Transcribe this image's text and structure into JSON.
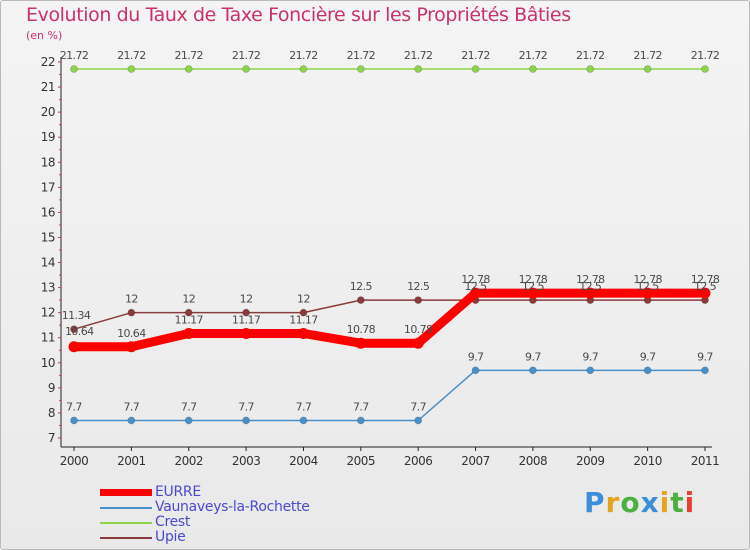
{
  "title": "Evolution du Taux de Taxe Foncière sur les Propriétés Bâties",
  "unit_label": "(en %)",
  "colors": {
    "title": "#c8326e",
    "axis": "#222222",
    "tick_marks": "#c8326e",
    "legend_text": "#4a4ad0"
  },
  "chart_data": {
    "type": "line",
    "title": "Evolution du Taux de Taxe Foncière sur les Propriétés Bâties",
    "ylabel": "(en %)",
    "xlabel": "",
    "x": [
      "2000",
      "2001",
      "2002",
      "2003",
      "2004",
      "2005",
      "2006",
      "2007",
      "2008",
      "2009",
      "2010",
      "2011"
    ],
    "ylim": [
      7,
      22
    ],
    "yticks": [
      "7",
      "8",
      "9",
      "10",
      "11",
      "12",
      "13",
      "14",
      "15",
      "16",
      "17",
      "18",
      "19",
      "20",
      "21",
      "22"
    ],
    "series": [
      {
        "name": "EURRE",
        "color": "#ff0000",
        "values": [
          10.64,
          10.64,
          11.17,
          11.17,
          11.17,
          10.78,
          10.78,
          12.78,
          12.78,
          12.78,
          12.78,
          12.78
        ],
        "labels": [
          "10.64",
          "10.64",
          "11.17",
          "11.17",
          "11.17",
          "10.78",
          "10.78",
          "12.78",
          "12.78",
          "12.78",
          "12.78",
          "12.78"
        ]
      },
      {
        "name": "Vaunaveys-la-Rochette",
        "color": "#4a90c8",
        "values": [
          7.7,
          7.7,
          7.7,
          7.7,
          7.7,
          7.7,
          7.7,
          9.7,
          9.7,
          9.7,
          9.7,
          9.7
        ],
        "labels": [
          "7.7",
          "7.7",
          "7.7",
          "7.7",
          "7.7",
          "7.7",
          "7.7",
          "9.7",
          "9.7",
          "9.7",
          "9.7",
          "9.7"
        ]
      },
      {
        "name": "Crest",
        "color": "#8ed44a",
        "values": [
          21.72,
          21.72,
          21.72,
          21.72,
          21.72,
          21.72,
          21.72,
          21.72,
          21.72,
          21.72,
          21.72,
          21.72
        ],
        "labels": [
          "21.72",
          "21.72",
          "21.72",
          "21.72",
          "21.72",
          "21.72",
          "21.72",
          "21.72",
          "21.72",
          "21.72",
          "21.72",
          "21.72"
        ]
      },
      {
        "name": "Upie",
        "color": "#8a3c3c",
        "values": [
          11.34,
          12,
          12,
          12,
          12,
          12.5,
          12.5,
          12.5,
          12.5,
          12.5,
          12.5,
          12.5
        ],
        "labels": [
          "11.34",
          "12",
          "12",
          "12",
          "12",
          "12.5",
          "12.5",
          "12.5",
          "12.5",
          "12.5",
          "12.5",
          "12.5"
        ]
      }
    ],
    "legend": [
      "EURRE",
      "Vaunaveys-la-Rochette",
      "Crest",
      "Upie"
    ],
    "legend_position": "bottom-left",
    "grid": false
  },
  "logo": {
    "letters": [
      "P",
      "r",
      "o",
      "x",
      "i",
      "t",
      "i"
    ],
    "colors": [
      "#3a8fd8",
      "#e8a21c",
      "#4cb040",
      "#3a8fd8",
      "#e8a21c",
      "#4cb040",
      "#e84030"
    ]
  }
}
